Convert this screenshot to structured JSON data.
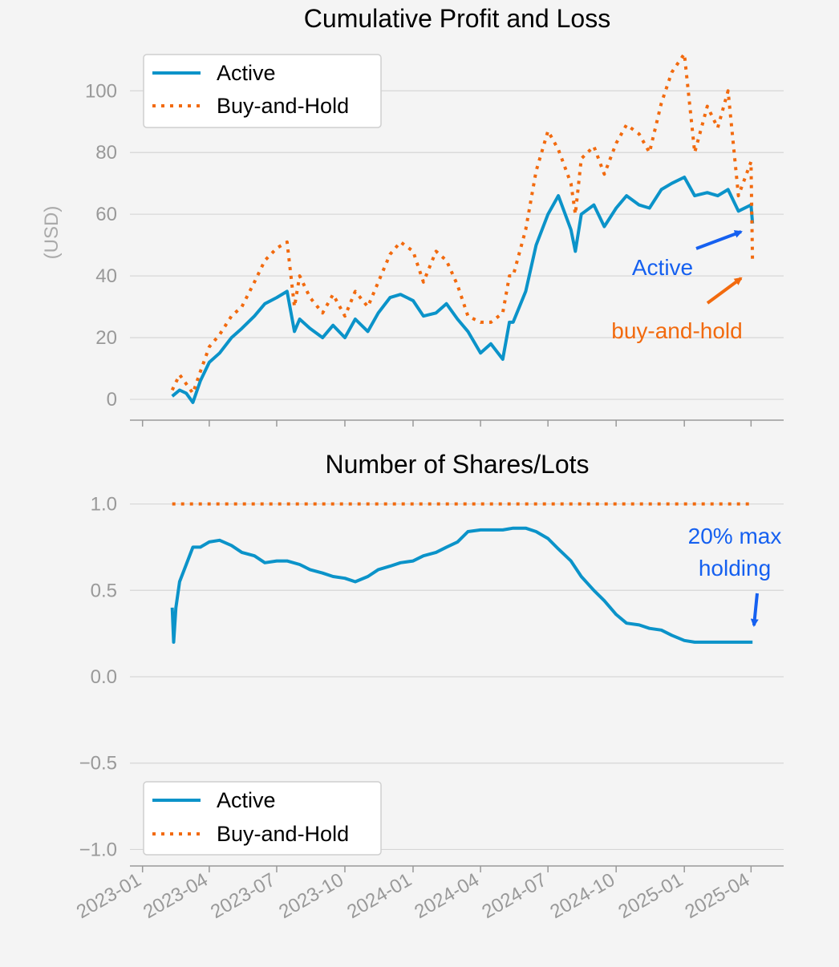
{
  "colors": {
    "active": "#0b93c9",
    "buy_hold": "#f26a0e",
    "annotation_blue": "#1560f0",
    "annotation_orange": "#f26a0e",
    "grid": "#d6d6d6",
    "axis": "#999999"
  },
  "chart_data": [
    {
      "type": "line",
      "title": "Cumulative Profit and Loss",
      "xlabel": "",
      "ylabel": "(USD)",
      "ylim": [
        -7,
        118
      ],
      "yticks": [
        0,
        20,
        40,
        60,
        80,
        100
      ],
      "grid": true,
      "legend": "top-left",
      "series": [
        {
          "name": "Active",
          "style": "solid",
          "color": "#0b93c9",
          "x": [
            "2023-02-10",
            "2023-02-20",
            "2023-03-01",
            "2023-03-10",
            "2023-03-20",
            "2023-04-01",
            "2023-04-15",
            "2023-05-01",
            "2023-05-15",
            "2023-06-01",
            "2023-06-15",
            "2023-07-01",
            "2023-07-15",
            "2023-07-25",
            "2023-08-01",
            "2023-08-15",
            "2023-09-01",
            "2023-09-15",
            "2023-10-01",
            "2023-10-15",
            "2023-11-01",
            "2023-11-15",
            "2023-12-01",
            "2023-12-15",
            "2024-01-01",
            "2024-01-15",
            "2024-02-01",
            "2024-02-15",
            "2024-03-01",
            "2024-03-15",
            "2024-04-01",
            "2024-04-15",
            "2024-05-01",
            "2024-05-10",
            "2024-05-15",
            "2024-06-01",
            "2024-06-15",
            "2024-07-01",
            "2024-07-15",
            "2024-08-01",
            "2024-08-07",
            "2024-08-15",
            "2024-09-01",
            "2024-09-15",
            "2024-10-01",
            "2024-10-15",
            "2024-11-01",
            "2024-11-15",
            "2024-12-01",
            "2024-12-15",
            "2025-01-01",
            "2025-01-15",
            "2025-02-01",
            "2025-02-15",
            "2025-03-01",
            "2025-03-15",
            "2025-04-01",
            "2025-04-03"
          ],
          "values": [
            1,
            3,
            2,
            -1,
            6,
            12,
            15,
            20,
            23,
            27,
            31,
            33,
            35,
            22,
            26,
            23,
            20,
            24,
            20,
            26,
            22,
            28,
            33,
            34,
            32,
            27,
            28,
            31,
            26,
            22,
            15,
            18,
            13,
            25,
            25,
            35,
            50,
            60,
            66,
            55,
            48,
            60,
            63,
            56,
            62,
            66,
            63,
            62,
            68,
            70,
            72,
            66,
            67,
            66,
            68,
            61,
            63,
            57
          ]
        },
        {
          "name": "Buy-and-Hold",
          "style": "dotted",
          "color": "#f26a0e",
          "x": [
            "2023-02-10",
            "2023-02-20",
            "2023-03-01",
            "2023-03-10",
            "2023-03-20",
            "2023-04-01",
            "2023-04-15",
            "2023-05-01",
            "2023-05-15",
            "2023-06-01",
            "2023-06-15",
            "2023-07-01",
            "2023-07-15",
            "2023-07-25",
            "2023-08-01",
            "2023-08-15",
            "2023-09-01",
            "2023-09-15",
            "2023-10-01",
            "2023-10-15",
            "2023-11-01",
            "2023-11-15",
            "2023-12-01",
            "2023-12-15",
            "2024-01-01",
            "2024-01-15",
            "2024-02-01",
            "2024-02-15",
            "2024-03-01",
            "2024-03-15",
            "2024-04-01",
            "2024-04-15",
            "2024-05-01",
            "2024-05-10",
            "2024-05-15",
            "2024-06-01",
            "2024-06-15",
            "2024-07-01",
            "2024-07-15",
            "2024-08-01",
            "2024-08-07",
            "2024-08-15",
            "2024-09-01",
            "2024-09-15",
            "2024-10-01",
            "2024-10-15",
            "2024-11-01",
            "2024-11-15",
            "2024-12-01",
            "2024-12-15",
            "2025-01-01",
            "2025-01-15",
            "2025-02-01",
            "2025-02-15",
            "2025-03-01",
            "2025-03-15",
            "2025-04-01",
            "2025-04-03"
          ],
          "values": [
            3,
            8,
            5,
            2,
            9,
            17,
            21,
            27,
            30,
            38,
            45,
            49,
            51,
            30,
            40,
            33,
            28,
            34,
            27,
            35,
            30,
            38,
            47,
            51,
            48,
            38,
            48,
            45,
            37,
            27,
            25,
            25,
            28,
            40,
            40,
            55,
            74,
            87,
            81,
            70,
            60,
            78,
            82,
            73,
            83,
            89,
            86,
            80,
            96,
            106,
            112,
            80,
            95,
            88,
            100,
            66,
            77,
            44
          ]
        }
      ]
    },
    {
      "type": "line",
      "title": "Number of Shares/Lots",
      "xlabel": "",
      "ylabel": "",
      "ylim": [
        -1.1,
        1.1
      ],
      "yticks": [
        -1.0,
        -0.5,
        0.0,
        0.5,
        1.0
      ],
      "ytick_labels": [
        "−1.0",
        "−0.5",
        "0.0",
        "0.5",
        "1.0"
      ],
      "xticks": [
        "2023-01",
        "2023-04",
        "2023-07",
        "2023-10",
        "2024-01",
        "2024-04",
        "2024-07",
        "2024-10",
        "2025-01",
        "2025-04"
      ],
      "grid": true,
      "legend": "bottom-left",
      "series": [
        {
          "name": "Active",
          "style": "solid",
          "color": "#0b93c9",
          "x": [
            "2023-02-10",
            "2023-02-12",
            "2023-02-15",
            "2023-02-20",
            "2023-03-01",
            "2023-03-10",
            "2023-03-20",
            "2023-04-01",
            "2023-04-15",
            "2023-05-01",
            "2023-05-15",
            "2023-06-01",
            "2023-06-15",
            "2023-07-01",
            "2023-07-15",
            "2023-08-01",
            "2023-08-15",
            "2023-09-01",
            "2023-09-15",
            "2023-10-01",
            "2023-10-15",
            "2023-11-01",
            "2023-11-15",
            "2023-12-01",
            "2023-12-15",
            "2024-01-01",
            "2024-01-15",
            "2024-02-01",
            "2024-02-15",
            "2024-03-01",
            "2024-03-15",
            "2024-04-01",
            "2024-04-15",
            "2024-05-01",
            "2024-05-15",
            "2024-06-01",
            "2024-06-15",
            "2024-07-01",
            "2024-07-15",
            "2024-08-01",
            "2024-08-15",
            "2024-09-01",
            "2024-09-15",
            "2024-10-01",
            "2024-10-15",
            "2024-11-01",
            "2024-11-15",
            "2024-12-01",
            "2024-12-15",
            "2025-01-01",
            "2025-01-15",
            "2025-02-01",
            "2025-02-15",
            "2025-03-01",
            "2025-03-15",
            "2025-04-01",
            "2025-04-03"
          ],
          "values": [
            0.4,
            0.2,
            0.4,
            0.55,
            0.65,
            0.75,
            0.75,
            0.78,
            0.79,
            0.76,
            0.72,
            0.7,
            0.66,
            0.67,
            0.67,
            0.65,
            0.62,
            0.6,
            0.58,
            0.57,
            0.55,
            0.58,
            0.62,
            0.64,
            0.66,
            0.67,
            0.7,
            0.72,
            0.75,
            0.78,
            0.84,
            0.85,
            0.85,
            0.85,
            0.86,
            0.86,
            0.84,
            0.8,
            0.74,
            0.67,
            0.58,
            0.5,
            0.44,
            0.36,
            0.31,
            0.3,
            0.28,
            0.27,
            0.24,
            0.21,
            0.2,
            0.2,
            0.2,
            0.2,
            0.2,
            0.2,
            0.2
          ]
        },
        {
          "name": "Buy-and-Hold",
          "style": "dotted",
          "color": "#f26a0e",
          "x": [
            "2023-02-10",
            "2025-04-03"
          ],
          "values": [
            1.0,
            1.0
          ]
        }
      ]
    }
  ],
  "annotations": {
    "active": "Active",
    "buy_hold": "buy-and-hold",
    "max_holding_line1": "20% max",
    "max_holding_line2": "holding"
  }
}
